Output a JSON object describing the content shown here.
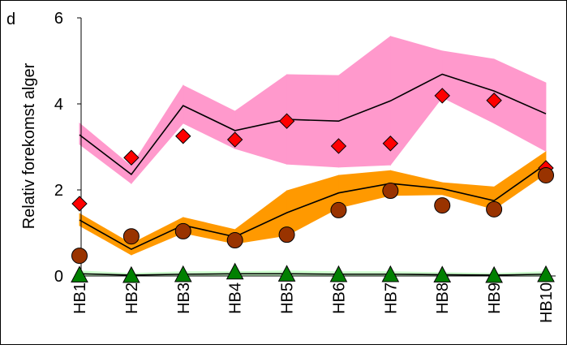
{
  "chart_data": {
    "type": "band-line",
    "panel_label": "d",
    "y_label": "Relativ forekomst alger",
    "categories": [
      "HB1",
      "HB2",
      "HB3",
      "HB4",
      "HB5",
      "HB6",
      "HB7",
      "HB8",
      "HB9",
      "HB10"
    ],
    "ylim": [
      0,
      6
    ],
    "yticks": [
      0,
      2,
      4,
      6
    ],
    "series": [
      {
        "color": "#ff99cc",
        "marker_color": "#ff0000",
        "marker": "diamond",
        "upper": [
          3.55,
          2.55,
          4.43,
          3.83,
          4.68,
          4.66,
          5.57,
          5.23,
          5.04,
          4.49
        ],
        "lower": [
          3.06,
          2.15,
          3.55,
          2.96,
          2.6,
          2.53,
          2.58,
          4.15,
          3.55,
          2.9
        ],
        "line": [
          3.28,
          2.36,
          3.96,
          3.38,
          3.64,
          3.6,
          4.07,
          4.69,
          4.3,
          3.77
        ],
        "values": [
          1.68,
          2.75,
          3.25,
          3.17,
          3.6,
          3.02,
          3.08,
          4.19,
          4.08,
          2.51
        ]
      },
      {
        "color": "#ff9900",
        "marker_color": "#993300",
        "marker": "circle",
        "upper": [
          1.45,
          0.75,
          1.36,
          1.08,
          1.98,
          2.34,
          2.45,
          2.17,
          2.07,
          2.89
        ],
        "lower": [
          1.17,
          0.49,
          1.0,
          0.75,
          0.94,
          1.58,
          1.87,
          1.89,
          1.55,
          2.38
        ],
        "line": [
          1.3,
          0.62,
          1.18,
          0.91,
          1.47,
          1.93,
          2.15,
          2.03,
          1.75,
          2.6
        ],
        "values": [
          0.47,
          0.92,
          1.04,
          0.83,
          0.96,
          1.53,
          1.98,
          1.64,
          1.55,
          2.34
        ]
      },
      {
        "color": "#ccffcc",
        "marker_color": "#008000",
        "marker": "triangle",
        "upper": [
          0.12,
          0.06,
          0.1,
          0.1,
          0.12,
          0.1,
          0.1,
          0.08,
          0.06,
          0.1
        ],
        "lower": [
          0.0,
          0.0,
          0.0,
          0.0,
          0.0,
          0.0,
          0.0,
          0.0,
          0.0,
          0.0
        ],
        "line": [
          0.05,
          0.02,
          0.04,
          0.05,
          0.05,
          0.04,
          0.04,
          0.03,
          0.02,
          0.04
        ],
        "values": [
          0.01,
          0.0,
          0.02,
          0.08,
          0.03,
          0.02,
          0.02,
          0.01,
          0.0,
          0.02
        ]
      }
    ]
  }
}
